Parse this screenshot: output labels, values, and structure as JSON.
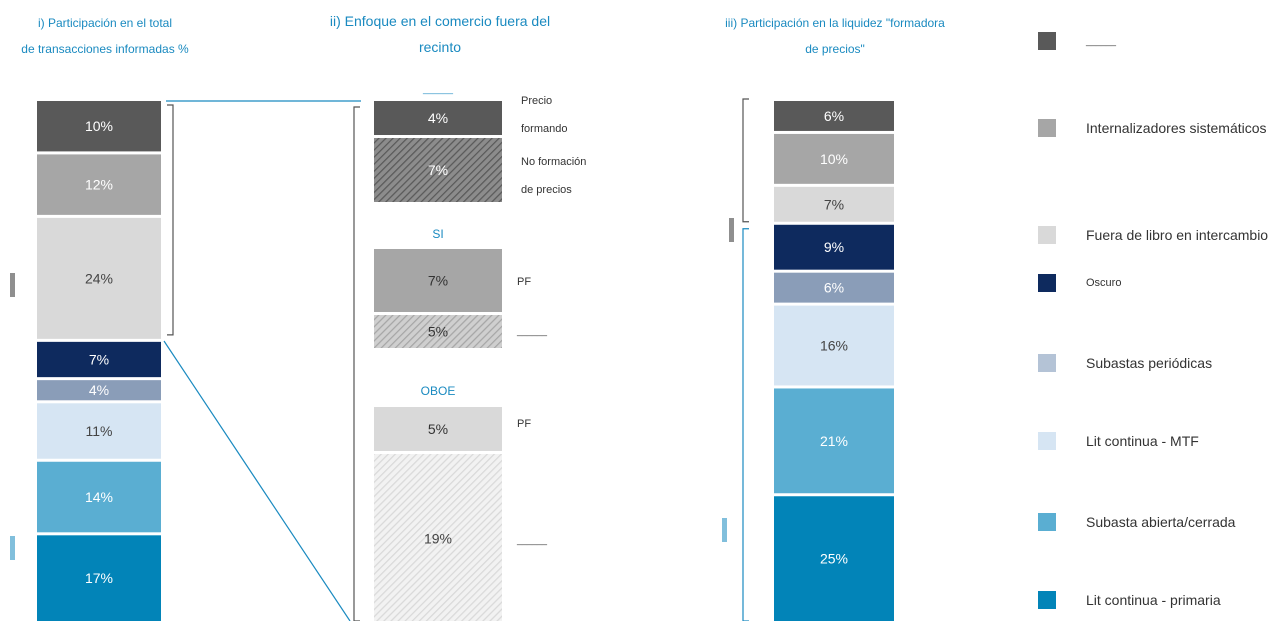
{
  "titles": {
    "panel1_line1": "i) Participación en el total",
    "panel1_line2": "de transacciones informadas %",
    "panel2_line1": "ii) Enfoque en el comercio fuera del",
    "panel2_line2": "recinto",
    "panel3_line1": "iii) Participación en la liquidez \"formadora",
    "panel3_line2": "de precios\""
  },
  "colors": {
    "otc": "#595959",
    "si": "#a6a6a6",
    "oboe": "#d9d9d9",
    "dark": "#0e2a5e",
    "periodic": "#8a9db8",
    "lit_mtf": "#d6e5f3",
    "auction": "#5aaed2",
    "lit_primary": "#0284b8",
    "accent": "#1a8ac0"
  },
  "legend": [
    {
      "label": "______",
      "color": "#595959"
    },
    {
      "label": "Internalizadores sistemáticos",
      "color": "#a6a6a6"
    },
    {
      "label": "Fuera de libro en intercambio",
      "color": "#d9d9d9"
    },
    {
      "label": "Oscuro",
      "color": "#0e2a5e"
    },
    {
      "label": "Subastas periódicas",
      "color": "#b4c3d6"
    },
    {
      "label": "Lit continua - MTF",
      "color": "#d6e5f3"
    },
    {
      "label": "Subasta abierta/cerrada",
      "color": "#5aaed2"
    },
    {
      "label": "Lit continua - primaria",
      "color": "#0284b8"
    }
  ],
  "chart_data": [
    {
      "type": "bar",
      "stacked": true,
      "title": "i) Participación en el total de transacciones informadas %",
      "segments": [
        {
          "label": "10%",
          "value": 10,
          "category": "______"
        },
        {
          "label": "12%",
          "value": 12,
          "category": "Internalizadores sistemáticos"
        },
        {
          "label": "24%",
          "value": 24,
          "category": "Fuera de libro en intercambio"
        },
        {
          "label": "7%",
          "value": 7,
          "category": "Oscuro"
        },
        {
          "label": "4%",
          "value": 4,
          "category": "Subastas periódicas"
        },
        {
          "label": "11%",
          "value": 11,
          "category": "Lit continua - MTF"
        },
        {
          "label": "14%",
          "value": 14,
          "category": "Subasta abierta/cerrada"
        },
        {
          "label": "17%",
          "value": 17,
          "category": "Lit continua - primaria"
        }
      ]
    },
    {
      "type": "bar",
      "stacked": true,
      "title": "ii) Enfoque en el comercio fuera del recinto",
      "groups": [
        {
          "header": "______",
          "segments": [
            {
              "label": "4%",
              "value": 4,
              "pattern": "solid",
              "note": "Precio formando"
            },
            {
              "label": "7%",
              "value": 7,
              "pattern": "hatched",
              "note": "No formación de precios"
            }
          ]
        },
        {
          "header": "SI",
          "segments": [
            {
              "label": "7%",
              "value": 7,
              "pattern": "solid",
              "note": "PF"
            },
            {
              "label": "5%",
              "value": 5,
              "pattern": "hatched",
              "note": "______"
            }
          ]
        },
        {
          "header": "OBOE",
          "segments": [
            {
              "label": "5%",
              "value": 5,
              "pattern": "solid",
              "note": "PF"
            },
            {
              "label": "19%",
              "value": 19,
              "pattern": "hatched",
              "note": "______"
            }
          ]
        }
      ]
    },
    {
      "type": "bar",
      "stacked": true,
      "title": "iii) Participación en la liquidez \"formadora de precios\"",
      "segments": [
        {
          "label": "6%",
          "value": 6,
          "category": "______"
        },
        {
          "label": "10%",
          "value": 10,
          "category": "Internalizadores sistemáticos"
        },
        {
          "label": "7%",
          "value": 7,
          "category": "Fuera de libro en intercambio"
        },
        {
          "label": "9%",
          "value": 9,
          "category": "Oscuro"
        },
        {
          "label": "6%",
          "value": 6,
          "category": "Subastas periódicas"
        },
        {
          "label": "16%",
          "value": 16,
          "category": "Lit continua - MTF"
        },
        {
          "label": "21%",
          "value": 21,
          "category": "Subasta abierta/cerrada"
        },
        {
          "label": "25%",
          "value": 25,
          "category": "Lit continua - primaria"
        }
      ]
    }
  ]
}
